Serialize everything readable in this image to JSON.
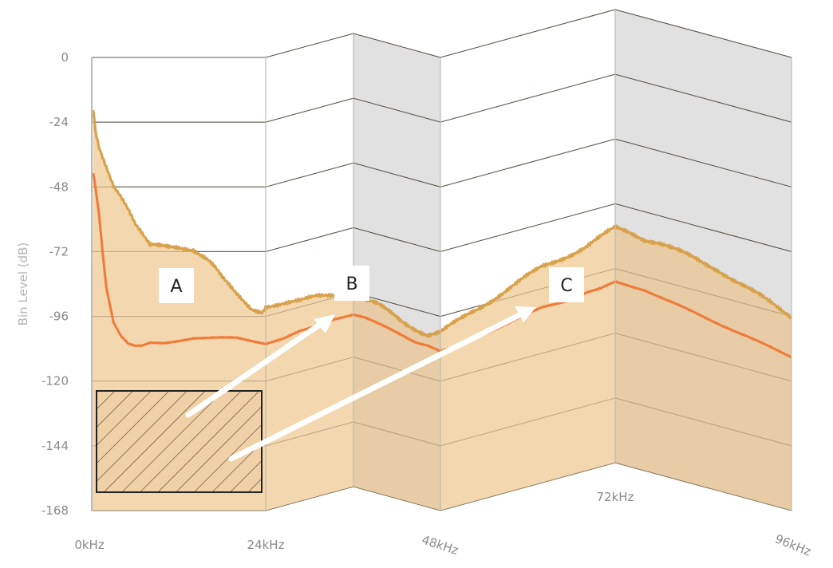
{
  "chart_data": {
    "type": "area",
    "title": "",
    "xlabel": "",
    "ylabel": "Bin Level (dB)",
    "xlim": [
      0,
      96
    ],
    "ylim": [
      -168,
      0
    ],
    "y_ticks": [
      "0",
      "-24",
      "-48",
      "-72",
      "-96",
      "-120",
      "-144",
      "-168"
    ],
    "x_ticks": [
      "0kHz",
      "24kHz",
      "48kHz",
      "72kHz",
      "96kHz"
    ],
    "grid": true,
    "colors": {
      "upper_fill": "#f2d4a8",
      "upper_line": "#d8a24c",
      "lower_line": "#f07a3a",
      "arrow": "#ffffff",
      "hatch": "#2a2a2a"
    },
    "series": [
      {
        "x": [
          0.2,
          0.5,
          1,
          2,
          3,
          4,
          5,
          6,
          7,
          8,
          10,
          12,
          14,
          16,
          17,
          18,
          20,
          22,
          23.5,
          24,
          26,
          28,
          30,
          32,
          34,
          36,
          38,
          40,
          42,
          44,
          46,
          48,
          50,
          52,
          54,
          56,
          58,
          60,
          62,
          64,
          66,
          68,
          70,
          72,
          74,
          76,
          78,
          80,
          82,
          84,
          86,
          88,
          90,
          92,
          94,
          96
        ],
        "values": [
          -20,
          -27,
          -33,
          -40,
          -47,
          -51,
          -56,
          -62,
          -66,
          -70,
          -70,
          -70,
          -71,
          -75,
          -78,
          -82,
          -88,
          -93,
          -94,
          -92,
          -93,
          -94,
          -94,
          -95,
          -96,
          -97,
          -98,
          -100,
          -102,
          -103,
          -104,
          -102,
          -100,
          -98,
          -96,
          -94,
          -92,
          -90,
          -88,
          -87,
          -86,
          -85,
          -83,
          -81,
          -81,
          -82,
          -82,
          -83,
          -84,
          -85,
          -86,
          -88,
          -90,
          -92,
          -94,
          -96
        ]
      },
      {
        "x": [
          0.2,
          0.5,
          1,
          1.5,
          2,
          3,
          4,
          5,
          6,
          7,
          8,
          10,
          12,
          14,
          16,
          18,
          20,
          22,
          24,
          26,
          28,
          30,
          32,
          34,
          36,
          38,
          40,
          42,
          44,
          46,
          48,
          50,
          52,
          54,
          56,
          58,
          60,
          62,
          64,
          66,
          68,
          70,
          72,
          74,
          76,
          78,
          80,
          82,
          84,
          86,
          88,
          90,
          92,
          94,
          96
        ],
        "values": [
          -43,
          -48,
          -58,
          -72,
          -85,
          -98,
          -103,
          -106,
          -107,
          -107,
          -106,
          -106,
          -105,
          -104,
          -104,
          -104,
          -104,
          -105,
          -106,
          -106,
          -105,
          -105,
          -104,
          -104,
          -104,
          -105,
          -106,
          -107,
          -108,
          -108,
          -109,
          -109,
          -108,
          -107,
          -106,
          -105,
          -104,
          -103,
          -103,
          -103,
          -102,
          -102,
          -101,
          -101,
          -101,
          -102,
          -103,
          -104,
          -105,
          -106,
          -107,
          -108,
          -109,
          -110,
          -111
        ]
      }
    ],
    "annotations": [
      {
        "label": "A"
      },
      {
        "label": "B"
      },
      {
        "label": "C"
      }
    ]
  }
}
